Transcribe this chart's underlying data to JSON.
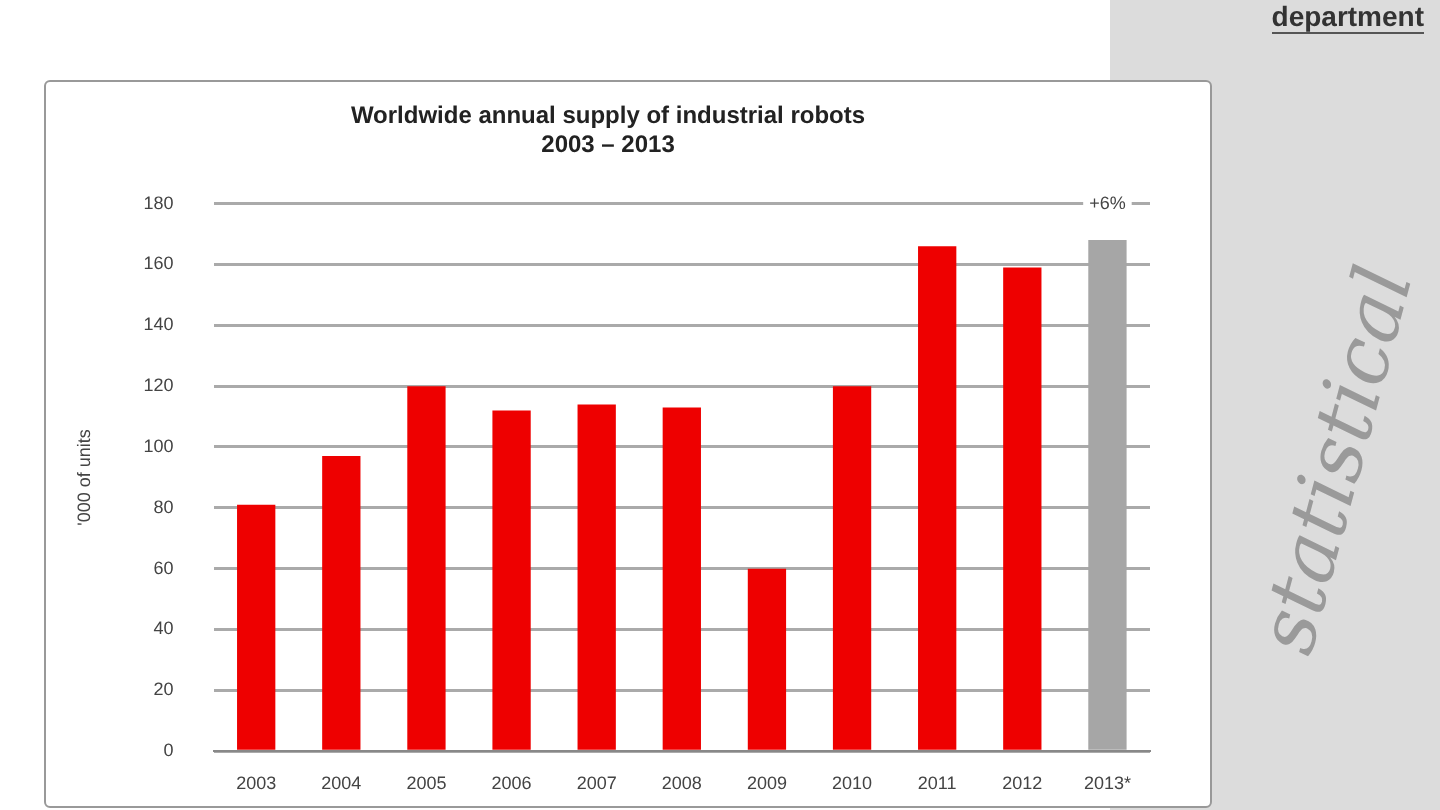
{
  "chart_data": {
    "type": "bar",
    "title": [
      "Worldwide annual supply of industrial robots",
      "2003 – 2013"
    ],
    "ylabel": "'000 of units",
    "categories": [
      "2003",
      "2004",
      "2005",
      "2006",
      "2007",
      "2008",
      "2009",
      "2010",
      "2011",
      "2012",
      "2013*"
    ],
    "values": [
      81,
      97,
      120,
      112,
      114,
      113,
      60,
      120,
      166,
      159,
      168
    ],
    "colors": [
      "#ee0000",
      "#ee0000",
      "#ee0000",
      "#ee0000",
      "#ee0000",
      "#ee0000",
      "#ee0000",
      "#ee0000",
      "#ee0000",
      "#ee0000",
      "#a6a6a6"
    ],
    "ylim": [
      0,
      180
    ],
    "yticks": [
      0,
      20,
      40,
      60,
      80,
      100,
      120,
      140,
      160,
      180
    ],
    "grid": "y",
    "legend": false,
    "annotations": [
      {
        "text": "+6%",
        "x": "2013*",
        "y": 168
      },
      "department",
      "statistical"
    ]
  }
}
